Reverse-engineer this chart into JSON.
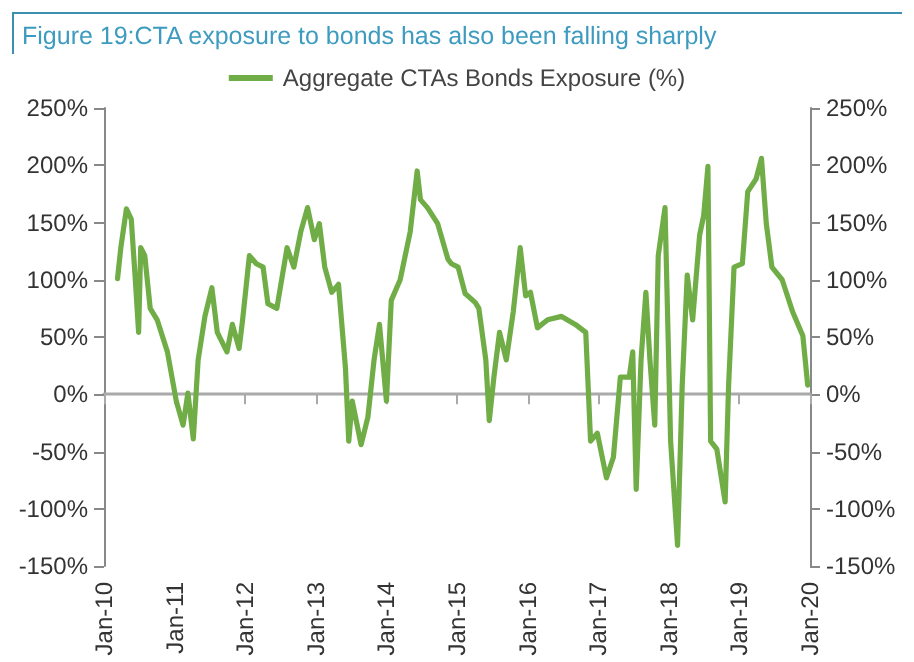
{
  "chart_data": {
    "type": "line",
    "title": "Figure 19:CTA exposure to bonds has also been falling sharply",
    "x": [
      "2010-03-12",
      "2010-03-29",
      "2010-04-27",
      "2010-05-22",
      "2010-06-12",
      "2010-06-29",
      "2010-07-10",
      "2010-07-31",
      "2010-08-28",
      "2010-10-03",
      "2010-11-25",
      "2011-01-10",
      "2011-02-14",
      "2011-03-11",
      "2011-04-08",
      "2011-05-03",
      "2011-06-07",
      "2011-07-13",
      "2011-08-10",
      "2011-09-29",
      "2011-10-27",
      "2011-12-01",
      "2011-12-19",
      "2012-01-23",
      "2012-02-28",
      "2012-04-03",
      "2012-04-28",
      "2012-06-13",
      "2012-08-05",
      "2012-09-09",
      "2012-10-15",
      "2012-11-19",
      "2012-12-24",
      "2013-01-19",
      "2013-02-16",
      "2013-03-24",
      "2013-04-28",
      "2013-06-03",
      "2013-06-20",
      "2013-07-08",
      "2013-08-23",
      "2013-09-27",
      "2013-10-29",
      "2013-11-26",
      "2014-01-01",
      "2014-01-26",
      "2014-03-13",
      "2014-05-04",
      "2014-06-09",
      "2014-06-26",
      "2014-08-01",
      "2014-09-23",
      "2014-11-15",
      "2014-12-03",
      "2015-01-07",
      "2015-02-12",
      "2015-04-06",
      "2015-04-24",
      "2015-05-30",
      "2015-06-17",
      "2015-07-11",
      "2015-08-09",
      "2015-09-13",
      "2015-10-19",
      "2015-11-24",
      "2015-12-22",
      "2016-01-16",
      "2016-02-21",
      "2016-04-14",
      "2016-06-25",
      "2016-09-04",
      "2016-10-28",
      "2016-11-22",
      "2016-12-27",
      "2017-02-12",
      "2017-03-20",
      "2017-04-25",
      "2017-06-10",
      "2017-06-28",
      "2017-07-16",
      "2017-08-10",
      "2017-09-04",
      "2017-09-25",
      "2017-10-20",
      "2017-11-07",
      "2017-12-12",
      "2018-01-10",
      "2018-02-15",
      "2018-03-11",
      "2018-04-06",
      "2018-05-04",
      "2018-06-09",
      "2018-06-30",
      "2018-07-22",
      "2018-08-05",
      "2018-09-06",
      "2018-10-19",
      "2018-11-06",
      "2018-12-04",
      "2019-01-16",
      "2019-02-13",
      "2019-03-28",
      "2019-04-25",
      "2019-05-20",
      "2019-06-18",
      "2019-08-10",
      "2019-10-03",
      "2019-11-25",
      "2019-12-20"
    ],
    "series": [
      {
        "name": "Aggregate CTAs Bonds Exposure (%)",
        "color": "#70ad47",
        "values": [
          101,
          128,
          162,
          153,
          100,
          54,
          128,
          121,
          75,
          65,
          37,
          -6,
          -27,
          1,
          -39,
          30,
          68,
          93,
          54,
          37,
          61,
          40,
          65,
          121,
          114,
          111,
          79,
          75,
          128,
          111,
          142,
          163,
          135,
          149,
          111,
          89,
          96,
          23,
          -41,
          -6,
          -44,
          -20,
          30,
          61,
          -6,
          82,
          100,
          142,
          195,
          170,
          163,
          149,
          118,
          114,
          111,
          88,
          80,
          75,
          30,
          -23,
          15,
          54,
          30,
          72,
          128,
          86,
          89,
          58,
          65,
          68,
          61,
          54,
          -41,
          -34,
          -73,
          -55,
          15,
          15,
          37,
          -83,
          30,
          89,
          30,
          -27,
          121,
          163,
          -41,
          -132,
          8,
          104,
          65,
          139,
          156,
          199,
          -41,
          -48,
          -94,
          8,
          111,
          114,
          177,
          188,
          206,
          149,
          111,
          100,
          72,
          51,
          8
        ]
      }
    ],
    "xlim": [
      "2010-01-01",
      "2020-01-01"
    ],
    "xticks": [
      {
        "value": "2010-01-01",
        "label": "Jan-10"
      },
      {
        "value": "2011-01-01",
        "label": "Jan-11"
      },
      {
        "value": "2012-01-01",
        "label": "Jan-12"
      },
      {
        "value": "2013-01-01",
        "label": "Jan-13"
      },
      {
        "value": "2014-01-01",
        "label": "Jan-14"
      },
      {
        "value": "2015-01-01",
        "label": "Jan-15"
      },
      {
        "value": "2016-01-01",
        "label": "Jan-16"
      },
      {
        "value": "2017-01-01",
        "label": "Jan-17"
      },
      {
        "value": "2018-01-01",
        "label": "Jan-18"
      },
      {
        "value": "2019-01-01",
        "label": "Jan-19"
      },
      {
        "value": "2020-01-01",
        "label": "Jan-20"
      }
    ],
    "ylim": [
      -150,
      250
    ],
    "yticks": [
      {
        "value": -150,
        "label": "-150%"
      },
      {
        "value": -100,
        "label": "-100%"
      },
      {
        "value": -50,
        "label": "-50%"
      },
      {
        "value": 0,
        "label": "0%"
      },
      {
        "value": 50,
        "label": "50%"
      },
      {
        "value": 100,
        "label": "100%"
      },
      {
        "value": 150,
        "label": "150%"
      },
      {
        "value": 200,
        "label": "200%"
      },
      {
        "value": 250,
        "label": "250%"
      }
    ],
    "y2lim": [
      -150,
      250
    ],
    "y2ticks": [
      {
        "value": -150,
        "label": "-150%"
      },
      {
        "value": -100,
        "label": "-100%"
      },
      {
        "value": -50,
        "label": "-50%"
      },
      {
        "value": 0,
        "label": "0%"
      },
      {
        "value": 50,
        "label": "50%"
      },
      {
        "value": 100,
        "label": "100%"
      },
      {
        "value": 150,
        "label": "150%"
      },
      {
        "value": 200,
        "label": "200%"
      },
      {
        "value": 250,
        "label": "250%"
      }
    ],
    "legend": "top"
  }
}
